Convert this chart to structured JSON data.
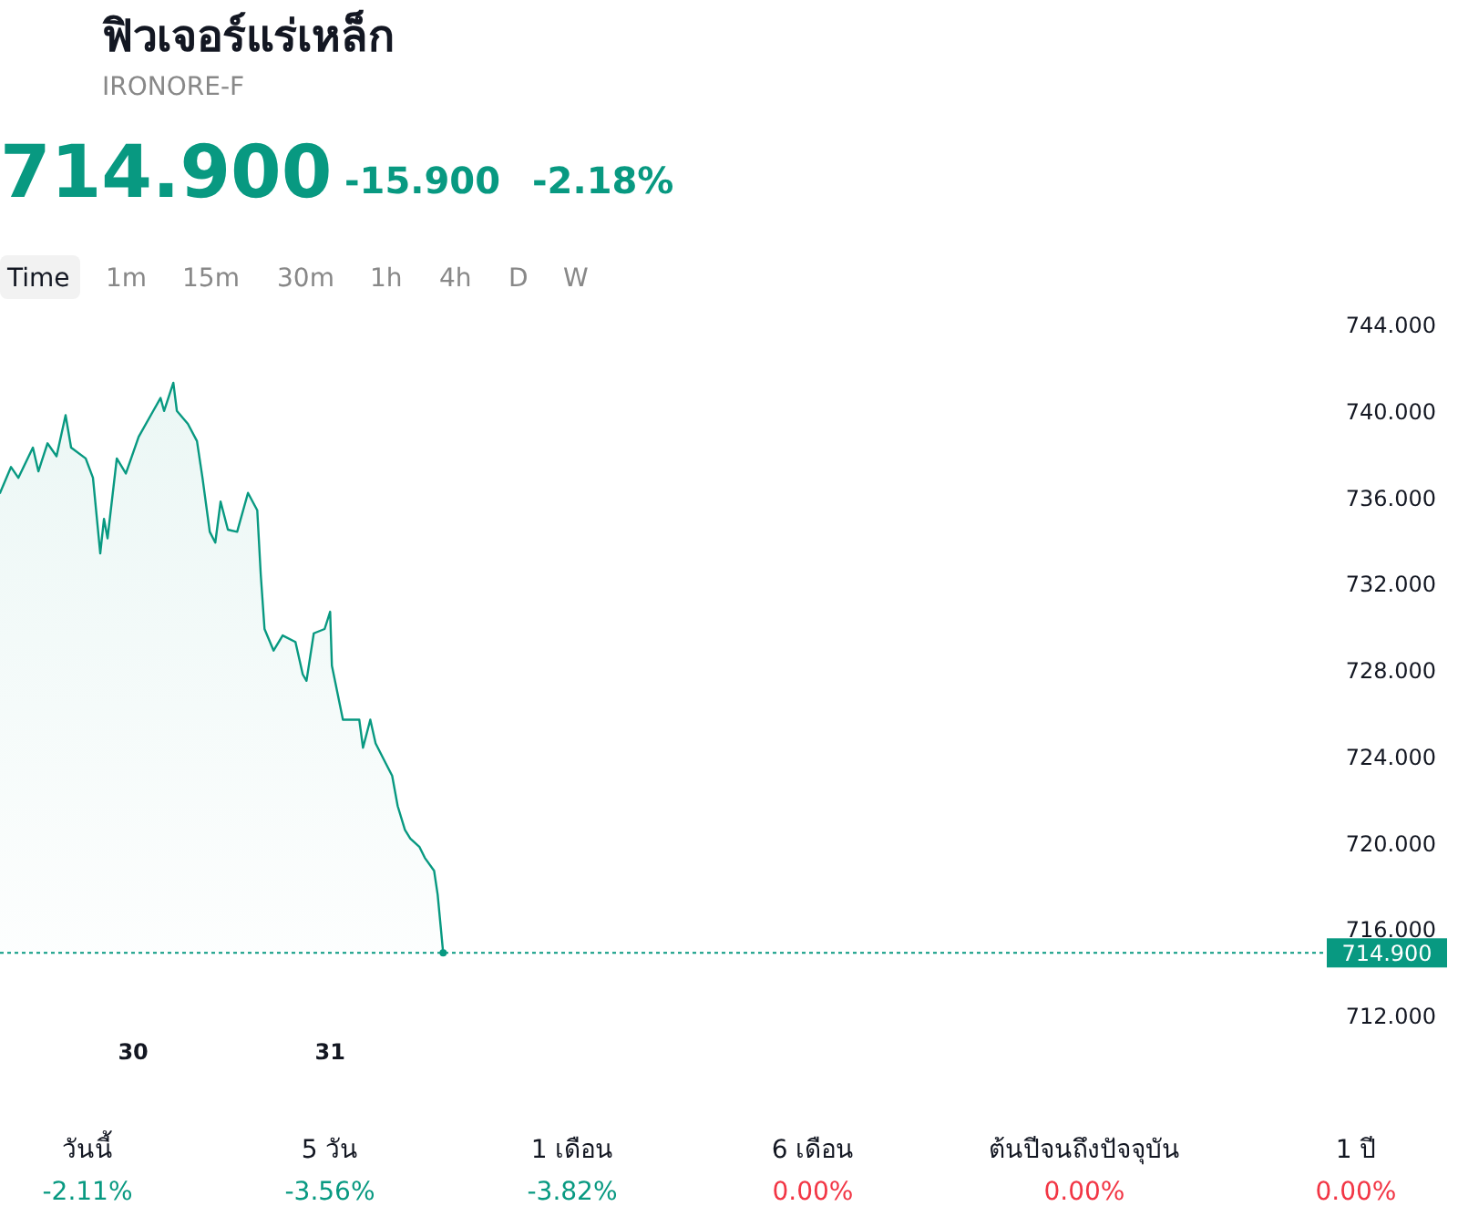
{
  "chart_data": {
    "type": "area",
    "title": "ฟิวเจอร์แร่เหล็ก",
    "subtitle": "IRONORE-F",
    "annotations": [
      "714.900",
      "-15.900",
      "-2.18%",
      "Time",
      "1m",
      "15m",
      "30m",
      "1h",
      "4h",
      "D",
      "W",
      "วันนี้",
      "-2.11%",
      "5 วัน",
      "-3.56%",
      "1 เดือน",
      "-3.82%",
      "6 เดือน",
      "0.00%",
      "ต้นปีจนถึงปัจจุบัน",
      "0.00%",
      "1 ปี",
      "0.00%"
    ],
    "xlim": [
      29.324,
      36.06
    ],
    "ylim": [
      712,
      744
    ],
    "xticks": [
      {
        "value": 30,
        "label": "30"
      },
      {
        "value": 31,
        "label": "31"
      }
    ],
    "yticks": [
      {
        "value": 712,
        "label": "712.000"
      },
      {
        "value": 716,
        "label": "716.000"
      },
      {
        "value": 720,
        "label": "720.000"
      },
      {
        "value": 724,
        "label": "724.000"
      },
      {
        "value": 728,
        "label": "728.000"
      },
      {
        "value": 732,
        "label": "732.000"
      },
      {
        "value": 736,
        "label": "736.000"
      },
      {
        "value": 740,
        "label": "740.000"
      },
      {
        "value": 744,
        "label": "744.000"
      }
    ],
    "ref_lines": [
      {
        "axis": "y",
        "value": 714.9,
        "label": "714.900",
        "color": "#089981",
        "line_style": "dotted"
      }
    ],
    "series": [
      {
        "color": "#089981",
        "x": [
          29.324,
          29.38,
          29.417,
          29.491,
          29.519,
          29.565,
          29.611,
          29.657,
          29.685,
          29.759,
          29.796,
          29.833,
          29.852,
          29.87,
          29.917,
          29.963,
          30.028,
          30.102,
          30.139,
          30.157,
          30.204,
          30.222,
          30.278,
          30.324,
          30.352,
          30.389,
          30.417,
          30.444,
          30.481,
          30.528,
          30.583,
          30.63,
          30.648,
          30.667,
          30.713,
          30.759,
          30.824,
          30.861,
          30.88,
          30.917,
          30.972,
          31.0,
          31.009,
          31.065,
          31.148,
          31.167,
          31.204,
          31.231,
          31.287,
          31.315,
          31.343,
          31.38,
          31.407,
          31.454,
          31.481,
          31.528,
          31.546,
          31.574
        ],
        "values": [
          736.2,
          737.4,
          736.9,
          738.3,
          737.2,
          738.5,
          737.9,
          739.8,
          738.3,
          737.8,
          736.9,
          733.4,
          735.0,
          734.1,
          737.8,
          737.1,
          738.8,
          740.0,
          740.6,
          740.0,
          741.3,
          740.0,
          739.4,
          738.6,
          736.9,
          734.4,
          733.9,
          735.8,
          734.5,
          734.4,
          736.2,
          735.4,
          732.4,
          729.9,
          728.9,
          729.6,
          729.3,
          727.8,
          727.5,
          729.7,
          729.9,
          730.7,
          728.2,
          725.7,
          725.7,
          724.4,
          725.7,
          724.6,
          723.6,
          723.1,
          721.7,
          720.6,
          720.2,
          719.8,
          719.3,
          718.7,
          717.6,
          714.9
        ]
      }
    ]
  }
}
